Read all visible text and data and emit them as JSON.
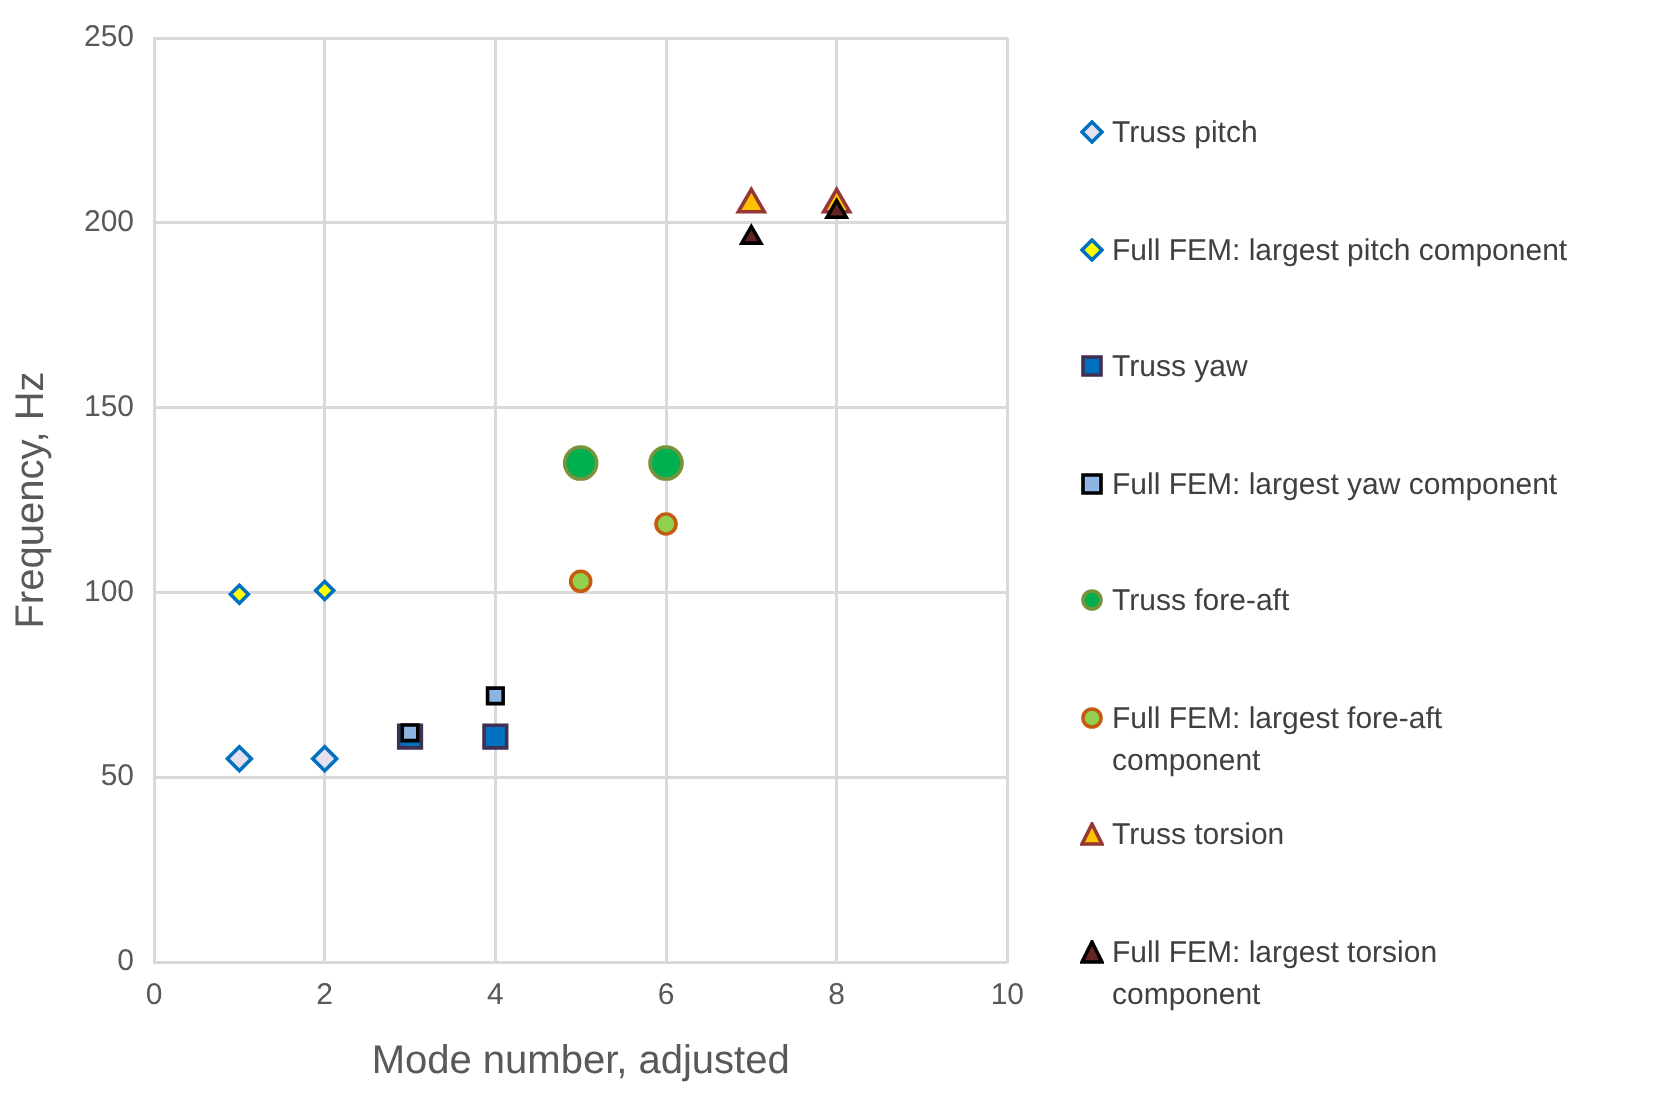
{
  "chart_data": {
    "type": "scatter",
    "xlabel": "Mode number, adjusted",
    "ylabel": "Frequency, Hz",
    "xlim": [
      0,
      10
    ],
    "xticks": [
      0,
      2,
      4,
      6,
      8,
      10
    ],
    "ylim": [
      0,
      250
    ],
    "yticks": [
      0,
      50,
      100,
      150,
      200,
      250
    ],
    "grid": true,
    "legend": "right",
    "series": [
      {
        "name": "Truss pitch",
        "color": "#e6e0ec",
        "marker": "diamond",
        "x": [
          1,
          2
        ],
        "values": [
          55,
          55
        ]
      },
      {
        "name": "Full FEM: largest pitch component",
        "color": "#ffff00",
        "marker": "diamond",
        "x": [
          1,
          2
        ],
        "values": [
          99.5,
          100.5
        ]
      },
      {
        "name": "Truss yaw",
        "color": "#0070c0",
        "marker": "square",
        "x": [
          3,
          4
        ],
        "values": [
          61,
          61
        ]
      },
      {
        "name": "Full FEM: largest yaw component",
        "color": "#8eb4e3",
        "marker": "square",
        "x": [
          3,
          4
        ],
        "values": [
          62,
          72
        ]
      },
      {
        "name": "Truss fore-aft",
        "color": "#00b050",
        "marker": "circle",
        "x": [
          5,
          6
        ],
        "values": [
          135,
          135
        ]
      },
      {
        "name": "Full FEM: largest fore-aft component",
        "color": "#92d050",
        "marker": "circle",
        "x": [
          5,
          6
        ],
        "values": [
          103,
          118.5
        ]
      },
      {
        "name": "Truss torsion",
        "color": "#ffc000",
        "marker": "triangle",
        "x": [
          7,
          8
        ],
        "values": [
          205,
          205
        ]
      },
      {
        "name": "Full FEM: largest torsion component",
        "color": "#632523",
        "marker": "triangle",
        "x": [
          7,
          8
        ],
        "values": [
          196,
          203
        ]
      }
    ]
  }
}
